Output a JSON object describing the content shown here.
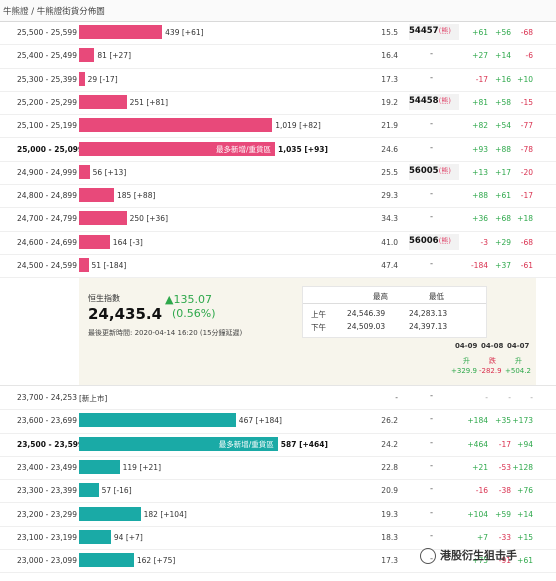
{
  "breadcrumb": "牛熊證 / 牛熊證街貨分佈圖",
  "upper_rows": [
    {
      "range": "25,500 - 25,599",
      "count": "439",
      "delta": "[+61]",
      "pct": "15.5",
      "code": "54457",
      "bear": "(熊)",
      "c1": "+61",
      "c2": "+56",
      "c3": "-68",
      "frac": 0.297
    },
    {
      "range": "25,400 - 25,499",
      "count": "81",
      "delta": "[+27]",
      "pct": "16.4",
      "code": "-",
      "bear": "",
      "c1": "+27",
      "c2": "+14",
      "c3": "-6",
      "frac": 0.055
    },
    {
      "range": "25,300 - 25,399",
      "count": "29",
      "delta": "[-17]",
      "pct": "17.3",
      "code": "-",
      "bear": "",
      "c1": "-17",
      "c2": "+16",
      "c3": "+10",
      "frac": 0.02
    },
    {
      "range": "25,200 - 25,299",
      "count": "251",
      "delta": "[+81]",
      "pct": "19.2",
      "code": "54458",
      "bear": "(熊)",
      "c1": "+81",
      "c2": "+58",
      "c3": "-15",
      "frac": 0.17
    },
    {
      "range": "25,100 - 25,199",
      "count": "1,019",
      "delta": "[+82]",
      "pct": "21.9",
      "code": "-",
      "bear": "",
      "c1": "+82",
      "c2": "+54",
      "c3": "-77",
      "frac": 0.69
    },
    {
      "range": "25,000 - 25,099",
      "count": "1,035",
      "delta": "[+93]",
      "pct": "24.6",
      "code": "-",
      "bear": "",
      "c1": "+93",
      "c2": "+88",
      "c3": "-78",
      "frac": 0.7,
      "bold": true,
      "inlabel": "最多新增/重貨區"
    },
    {
      "range": "24,900 - 24,999",
      "count": "56",
      "delta": "[+13]",
      "pct": "25.5",
      "code": "56005",
      "bear": "(熊)",
      "c1": "+13",
      "c2": "+17",
      "c3": "-20",
      "frac": 0.038
    },
    {
      "range": "24,800 - 24,899",
      "count": "185",
      "delta": "[+88]",
      "pct": "29.3",
      "code": "-",
      "bear": "",
      "c1": "+88",
      "c2": "+61",
      "c3": "-17",
      "frac": 0.125
    },
    {
      "range": "24,700 - 24,799",
      "count": "250",
      "delta": "[+36]",
      "pct": "34.3",
      "code": "-",
      "bear": "",
      "c1": "+36",
      "c2": "+68",
      "c3": "+18",
      "frac": 0.17
    },
    {
      "range": "24,600 - 24,699",
      "count": "164",
      "delta": "[-3]",
      "pct": "41.0",
      "code": "56006",
      "bear": "(熊)",
      "c1": "-3",
      "c2": "+29",
      "c3": "-68",
      "frac": 0.11
    },
    {
      "range": "24,500 - 24,599",
      "count": "51",
      "delta": "[-184]",
      "pct": "47.4",
      "code": "-",
      "bear": "",
      "c1": "-184",
      "c2": "+37",
      "c3": "-61",
      "frac": 0.034
    }
  ],
  "index_panel": {
    "title": "恒生指數",
    "value": "24,435.4",
    "change": "▲135.07",
    "change_pct": "(0.56%)",
    "updated": "最後更新時間: 2020-04-14 16:20 (15分鐘延遲)",
    "hilo": {
      "high_label": "最高",
      "low_label": "最低",
      "am_label": "上午",
      "pm_label": "下午",
      "am_high": "24,546.39",
      "am_low": "24,283.13",
      "pm_high": "24,509.03",
      "pm_low": "24,397.13"
    },
    "dates": [
      {
        "date": "04-09",
        "move": "升",
        "pts": "+329.9"
      },
      {
        "date": "04-08",
        "move": "跌",
        "pts": "-282.9"
      },
      {
        "date": "04-07",
        "move": "升",
        "pts": "+504.2"
      }
    ]
  },
  "lower_rows": [
    {
      "range": "23,700 - 24,253",
      "new_label": "[新上市]",
      "pct": "-",
      "code": "-",
      "c1": "-",
      "c2": "-",
      "c3": "-",
      "frac": 0
    },
    {
      "range": "23,600 - 23,699",
      "count": "467",
      "delta": "[+184]",
      "pct": "26.2",
      "code": "-",
      "c1": "+184",
      "c2": "+35",
      "c3": "+173",
      "frac": 0.56
    },
    {
      "range": "23,500 - 23,599",
      "count": "587",
      "delta": "[+464]",
      "pct": "24.2",
      "code": "-",
      "c1": "+464",
      "c2": "-17",
      "c3": "+94",
      "frac": 0.71,
      "bold": true,
      "inlabel": "最多新增/重貨區"
    },
    {
      "range": "23,400 - 23,499",
      "count": "119",
      "delta": "[+21]",
      "pct": "22.8",
      "code": "-",
      "c1": "+21",
      "c2": "-53",
      "c3": "+128",
      "frac": 0.145
    },
    {
      "range": "23,300 - 23,399",
      "count": "57",
      "delta": "[-16]",
      "pct": "20.9",
      "code": "-",
      "c1": "-16",
      "c2": "-38",
      "c3": "+76",
      "frac": 0.07
    },
    {
      "range": "23,200 - 23,299",
      "count": "182",
      "delta": "[+104]",
      "pct": "19.3",
      "code": "-",
      "c1": "+104",
      "c2": "+59",
      "c3": "+14",
      "frac": 0.22
    },
    {
      "range": "23,100 - 23,199",
      "count": "94",
      "delta": "[+7]",
      "pct": "18.3",
      "code": "-",
      "c1": "+7",
      "c2": "-33",
      "c3": "+15",
      "frac": 0.114
    },
    {
      "range": "23,000 - 23,099",
      "count": "162",
      "delta": "[+75]",
      "pct": "17.3",
      "code": "-",
      "c1": "+75",
      "c2": "-91",
      "c3": "+61",
      "frac": 0.196
    }
  ],
  "watermark": "港股衍生狙击手",
  "colors": {
    "bear_bar": "#e8497a",
    "bull_bar": "#1aaaa6",
    "up": "#2ea84b",
    "down": "#d9304f"
  }
}
